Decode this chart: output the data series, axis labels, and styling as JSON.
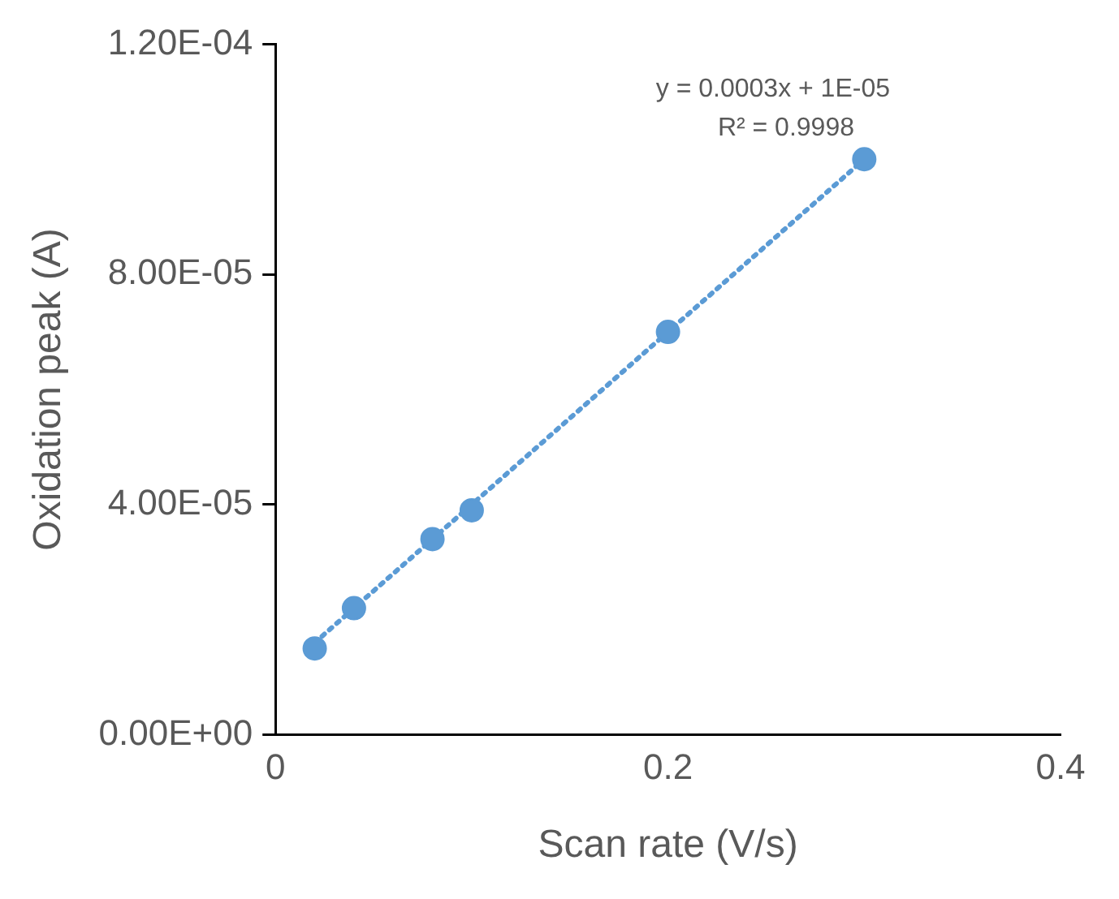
{
  "chart_data": {
    "type": "scatter",
    "xlabel": "Scan rate (V/s)",
    "ylabel": "Oxidation peak (A)",
    "xlim": [
      0,
      0.4
    ],
    "xticks": [
      0,
      0.2,
      0.4
    ],
    "ylim": [
      0,
      0.00012
    ],
    "yticks": [
      {
        "value": 0,
        "label": "0.00E+00"
      },
      {
        "value": 4e-05,
        "label": "4.00E-05"
      },
      {
        "value": 8e-05,
        "label": "8.00E-05"
      },
      {
        "value": 0.00012,
        "label": "1.20E-04"
      }
    ],
    "grid": false,
    "legend": false,
    "marker": "circle",
    "series": [
      {
        "color": "#5b9bd5",
        "x": [
          0.02,
          0.04,
          0.08,
          0.1,
          0.2,
          0.3
        ],
        "values": [
          1.5e-05,
          2.2e-05,
          3.4e-05,
          3.9e-05,
          7e-05,
          0.0001
        ]
      },
      {
        "type": "line",
        "color": "#5b9bd5",
        "line_style": "dotted",
        "marker": "none",
        "x": [
          0.02,
          0.3
        ],
        "values": [
          1.6e-05,
          0.0001
        ]
      }
    ],
    "annotations": [
      "y = 0.0003x + 1E-05",
      "R² = 0.9998"
    ]
  }
}
